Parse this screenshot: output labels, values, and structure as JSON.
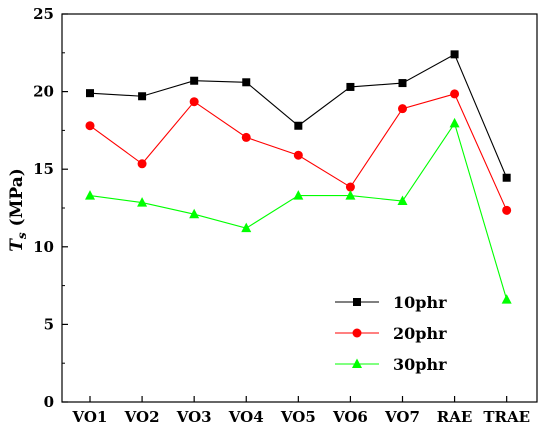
{
  "chart_data": {
    "type": "line",
    "categories": [
      "VO1",
      "VO2",
      "VO3",
      "VO4",
      "VO5",
      "VO6",
      "VO7",
      "RAE",
      "TRAE"
    ],
    "ylabel_main": "T",
    "ylabel_sub": "s",
    "ylabel_unit": " (MPa)",
    "ylim": [
      0,
      25
    ],
    "yticks": [
      0,
      5,
      10,
      15,
      20,
      25
    ],
    "grid": false,
    "legend_position": "bottom-right",
    "series": [
      {
        "name": "10phr",
        "color": "#000000",
        "marker": "square",
        "values": [
          19.9,
          19.7,
          20.7,
          20.6,
          17.8,
          20.3,
          20.55,
          22.4,
          14.45
        ]
      },
      {
        "name": "20phr",
        "color": "#ff0000",
        "marker": "circle",
        "values": [
          17.8,
          15.35,
          19.35,
          17.05,
          15.9,
          13.85,
          18.9,
          19.85,
          12.35
        ]
      },
      {
        "name": "30phr",
        "color": "#00ff00",
        "marker": "triangle",
        "values": [
          13.3,
          12.85,
          12.1,
          11.2,
          13.3,
          13.3,
          12.95,
          17.95,
          6.6
        ]
      }
    ]
  }
}
